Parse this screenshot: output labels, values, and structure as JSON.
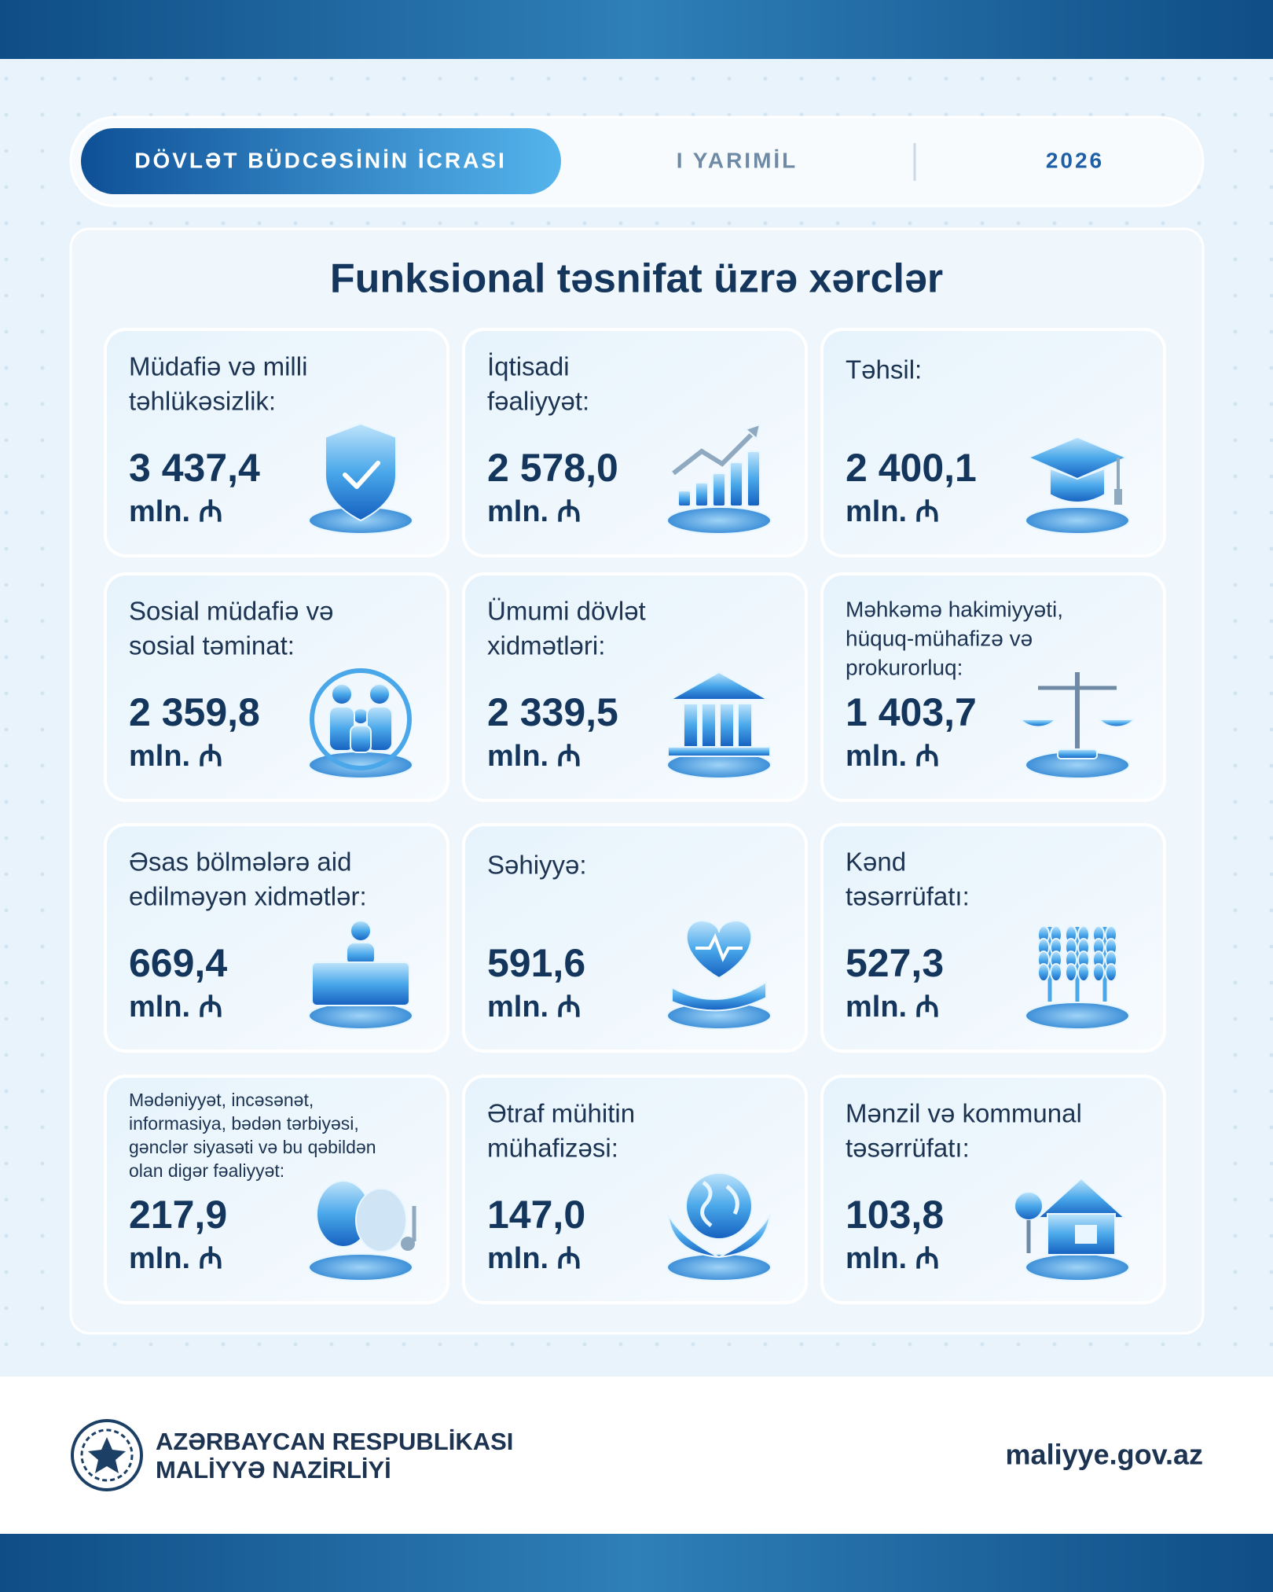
{
  "header": {
    "tab_active": "DÖVLƏT BÜDCƏSİNİN İCRASI",
    "period": "I YARIMİL",
    "year": "2026"
  },
  "title": "Funksional təsnifat üzrə xərclər",
  "cards": [
    {
      "label_lines": [
        "Müdafiə və milli",
        "təhlükəsizlik:"
      ],
      "value": "3 437,4",
      "unit": "mln. ₼"
    },
    {
      "label_lines": [
        "İqtisadi",
        "fəaliyyət:"
      ],
      "value": "2 578,0",
      "unit": "mln. ₼"
    },
    {
      "label_lines": [
        "Təhsil:"
      ],
      "value": "2 400,1",
      "unit": "mln. ₼"
    },
    {
      "label_lines": [
        "Sosial müdafiə və",
        "sosial təminat:"
      ],
      "value": "2 359,8",
      "unit": "mln. ₼"
    },
    {
      "label_lines": [
        "Ümumi dövlət",
        "xidmətləri:"
      ],
      "value": "2 339,5",
      "unit": "mln. ₼"
    },
    {
      "label_lines": [
        "Məhkəmə hakimiyyəti,",
        "hüquq-mühafizə və",
        "prokurorluq:"
      ],
      "value": "1 403,7",
      "unit": "mln. ₼"
    },
    {
      "label_lines": [
        "Əsas bölmələrə aid",
        "edilməyən xidmətlər:"
      ],
      "value": "669,4",
      "unit": "mln. ₼"
    },
    {
      "label_lines": [
        "Səhiyyə:"
      ],
      "value": "591,6",
      "unit": "mln. ₼"
    },
    {
      "label_lines": [
        "Kənd",
        "təsərrüfatı:"
      ],
      "value": "527,3",
      "unit": "mln. ₼"
    },
    {
      "label_lines": [
        "Mədəniyyət, incəsənət,",
        "informasiya, bədən tərbiyəsi,",
        "gənclər siyasəti və bu qəbildən",
        "olan digər fəaliyyət:"
      ],
      "value": "217,9",
      "unit": "mln. ₼"
    },
    {
      "label_lines": [
        "Ətraf mühitin",
        "mühafizəsi:"
      ],
      "value": "147,0",
      "unit": "mln. ₼"
    },
    {
      "label_lines": [
        "Mənzil və kommunal",
        "təsərrüfatı:"
      ],
      "value": "103,8",
      "unit": "mln. ₼"
    }
  ],
  "footer": {
    "org_lines": [
      "AZƏRBAYCAN RESPUBLİKASI",
      "MALİYYƏ NAZİRLİYİ"
    ],
    "website": "maliyye.gov.az"
  }
}
